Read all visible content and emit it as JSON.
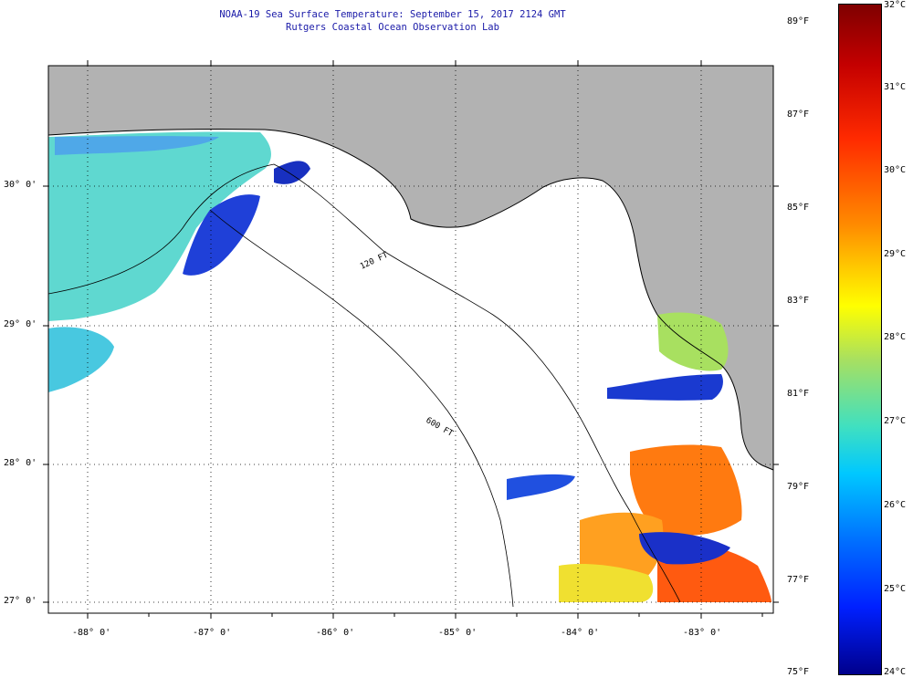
{
  "header": {
    "title": "NOAA-19 Sea Surface Temperature:  September 15, 2017 2124 GMT",
    "subtitle": "Rutgers Coastal Ocean Observation Lab"
  },
  "map": {
    "lat_labels": [
      "30° 0'",
      "29° 0'",
      "28° 0'",
      "27° 0'"
    ],
    "lon_labels": [
      "-88° 0'",
      "-87° 0'",
      "-86° 0'",
      "-85° 0'",
      "-84° 0'",
      "-83° 0'"
    ],
    "isobath_labels": [
      "120 FT",
      "600 FT"
    ],
    "colors": {
      "land": "#b2b2b2",
      "ocean_nodata": "#ffffff",
      "grid": "#000000"
    }
  },
  "colorbar": {
    "fahrenheit": [
      "89°F",
      "87°F",
      "85°F",
      "83°F",
      "81°F",
      "79°F",
      "77°F",
      "75°F"
    ],
    "celsius": [
      "32°C",
      "31°C",
      "30°C",
      "29°C",
      "28°C",
      "27°C",
      "26°C",
      "25°C",
      "24°C"
    ],
    "range_c": [
      24,
      32
    ]
  }
}
